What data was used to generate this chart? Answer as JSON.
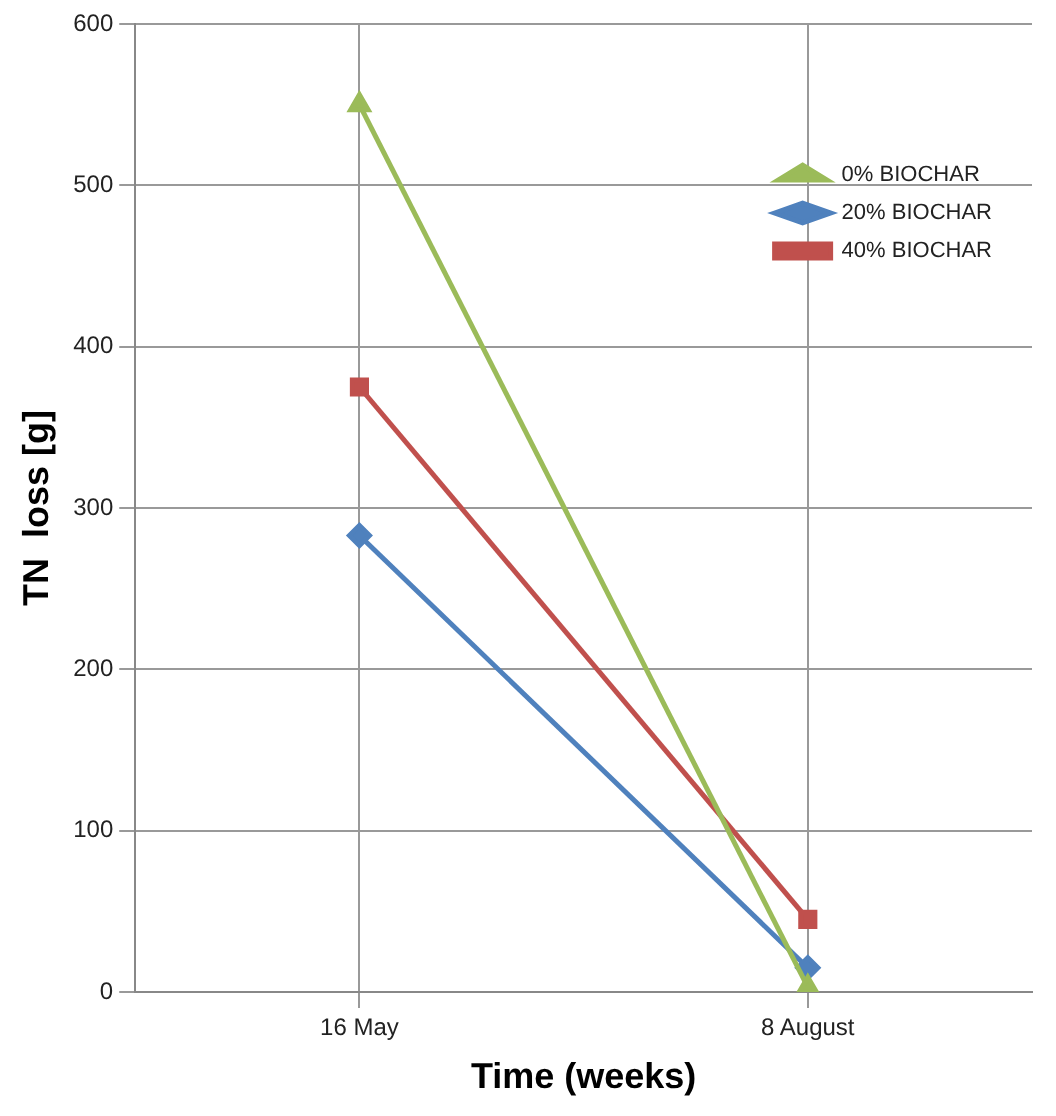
{
  "chart_data": {
    "type": "line",
    "categories": [
      "16 May",
      "8 August"
    ],
    "xlabel": "Time (weeks)",
    "ylabel": "TN  loss [g]",
    "ylim": [
      0,
      600
    ],
    "yticks": [
      0,
      100,
      200,
      300,
      400,
      500,
      600
    ],
    "grid": true,
    "legend": "top right",
    "line_style": "solid",
    "series": [
      {
        "name": "0% BIOCHAR",
        "color": "#9bbb59",
        "marker": "triangle",
        "values": [
          550,
          3
        ]
      },
      {
        "name": "20% BIOCHAR",
        "color": "#4f81bd",
        "marker": "diamond",
        "values": [
          283,
          15
        ]
      },
      {
        "name": "40% BIOCHAR",
        "color": "#c0504d",
        "marker": "square",
        "values": [
          375,
          45
        ]
      }
    ]
  }
}
